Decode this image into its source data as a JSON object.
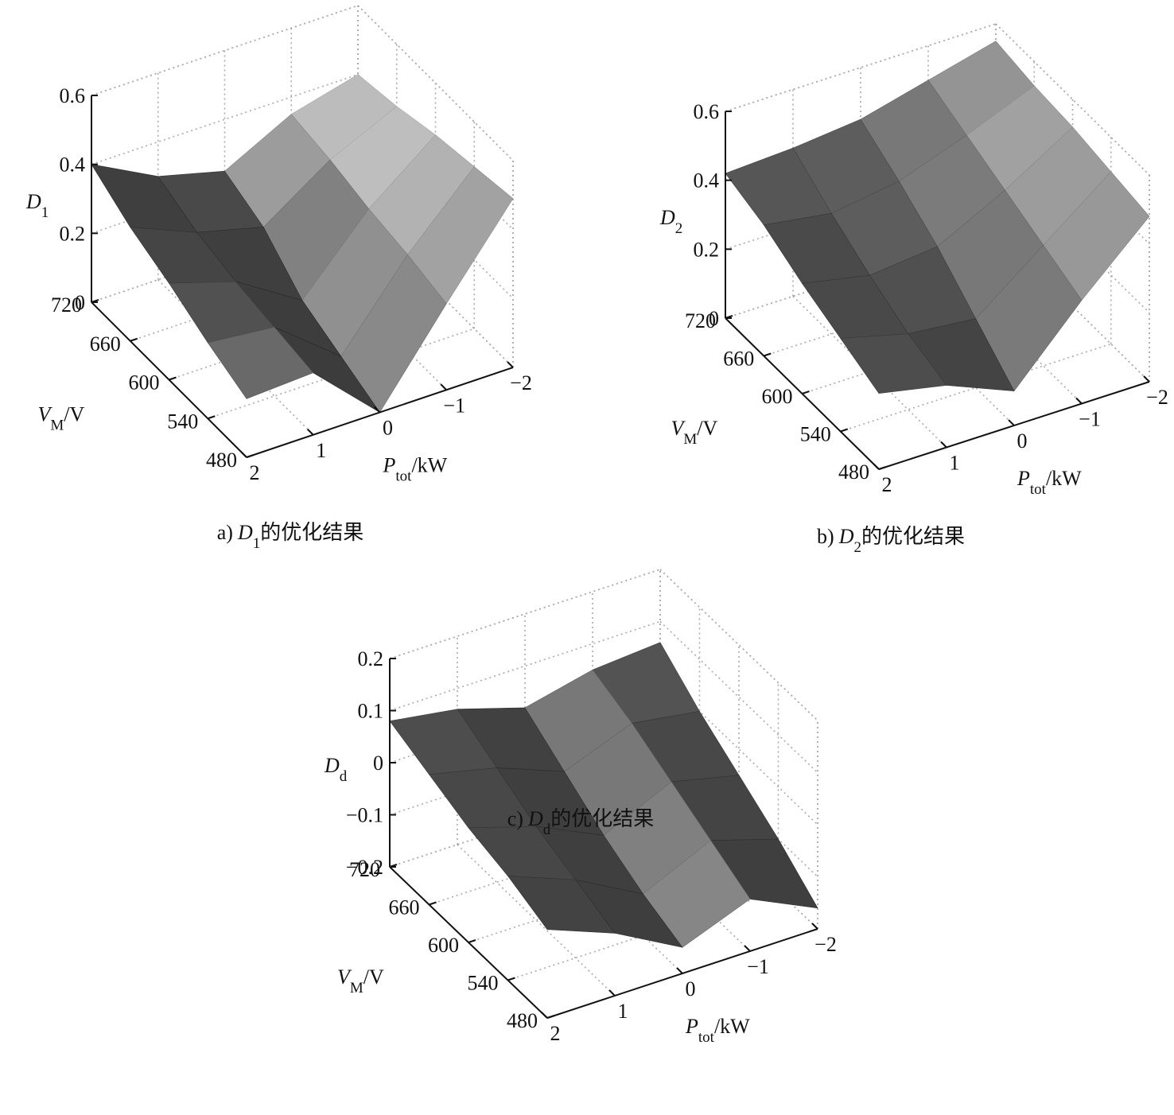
{
  "chart_data": [
    {
      "type": "surface",
      "grid": true,
      "caption": {
        "label": "a)",
        "var": "D",
        "sub": "1",
        "text": "的优化结果"
      },
      "zlabel": {
        "var": "D",
        "sub": "1"
      },
      "xlabel": {
        "var": "P",
        "sub": "tot",
        "unit": "/kW"
      },
      "ylabel": {
        "var": "V",
        "sub": "M",
        "unit": "/V"
      },
      "xlim": [
        -2,
        2
      ],
      "ylim": [
        480,
        720
      ],
      "zlim": [
        0,
        0.6
      ],
      "xticks": [
        2,
        1,
        0,
        {
          "value": -1,
          "label": "−1"
        },
        {
          "value": -2,
          "label": "−2"
        }
      ],
      "yticks": [
        480,
        540,
        600,
        660,
        720
      ],
      "zticks": [
        0,
        0.2,
        0.4,
        0.6
      ],
      "x": [
        -2,
        -1,
        0,
        1,
        2
      ],
      "y": [
        480,
        540,
        600,
        660,
        720
      ],
      "z": [
        [
          0.49,
          0.25,
          0.0,
          0.18,
          0.17
        ],
        [
          0.47,
          0.28,
          0.05,
          0.2,
          0.22
        ],
        [
          0.45,
          0.3,
          0.1,
          0.22,
          0.28
        ],
        [
          0.42,
          0.33,
          0.2,
          0.25,
          0.33
        ],
        [
          0.4,
          0.35,
          0.25,
          0.3,
          0.4
        ]
      ]
    },
    {
      "type": "surface",
      "grid": true,
      "caption": {
        "label": "b)",
        "var": "D",
        "sub": "2",
        "text": "的优化结果"
      },
      "zlabel": {
        "var": "D",
        "sub": "2"
      },
      "xlabel": {
        "var": "P",
        "sub": "tot",
        "unit": "/kW"
      },
      "ylabel": {
        "var": "V",
        "sub": "M",
        "unit": "/V"
      },
      "xlim": [
        -2,
        2
      ],
      "ylim": [
        480,
        720
      ],
      "zlim": [
        0,
        0.6
      ],
      "xticks": [
        2,
        1,
        0,
        {
          "value": -1,
          "label": "−1"
        },
        {
          "value": -2,
          "label": "−2"
        }
      ],
      "yticks": [
        480,
        540,
        600,
        660,
        720
      ],
      "zticks": [
        0,
        0.2,
        0.4,
        0.6
      ],
      "x": [
        -2,
        -1,
        0,
        1,
        2
      ],
      "y": [
        480,
        540,
        600,
        660,
        720
      ],
      "z": [
        [
          0.48,
          0.3,
          0.1,
          0.18,
          0.22
        ],
        [
          0.5,
          0.35,
          0.2,
          0.22,
          0.27
        ],
        [
          0.52,
          0.4,
          0.3,
          0.28,
          0.32
        ],
        [
          0.53,
          0.45,
          0.38,
          0.35,
          0.38
        ],
        [
          0.55,
          0.5,
          0.45,
          0.43,
          0.42
        ]
      ]
    },
    {
      "type": "surface",
      "grid": true,
      "caption": {
        "label": "c)",
        "var": "D",
        "sub": "d",
        "text": "的优化结果"
      },
      "zlabel": {
        "var": "D",
        "sub": "d"
      },
      "xlabel": {
        "var": "P",
        "sub": "tot",
        "unit": "/kW"
      },
      "ylabel": {
        "var": "V",
        "sub": "M",
        "unit": "/V"
      },
      "xlim": [
        -2,
        2
      ],
      "ylim": [
        480,
        720
      ],
      "zlim": [
        -0.2,
        0.2
      ],
      "xticks": [
        2,
        1,
        0,
        {
          "value": -1,
          "label": "−1"
        },
        {
          "value": -2,
          "label": "−2"
        }
      ],
      "yticks": [
        480,
        540,
        600,
        660,
        720
      ],
      "zticks": [
        {
          "value": -0.2,
          "label": "−0.2"
        },
        {
          "value": -0.1,
          "label": "−0.1"
        },
        0,
        0.1,
        0.2
      ],
      "x": [
        -2,
        -1,
        0,
        1,
        2
      ],
      "y": [
        480,
        540,
        600,
        660,
        720
      ],
      "z": [
        [
          -0.16,
          -0.1,
          -0.15,
          -0.08,
          -0.03
        ],
        [
          -0.1,
          -0.06,
          -0.12,
          -0.05,
          0.0
        ],
        [
          -0.05,
          -0.02,
          -0.08,
          -0.02,
          0.02
        ],
        [
          0.0,
          0.02,
          -0.03,
          0.02,
          0.05
        ],
        [
          0.06,
          0.05,
          0.02,
          0.06,
          0.08
        ]
      ]
    }
  ]
}
